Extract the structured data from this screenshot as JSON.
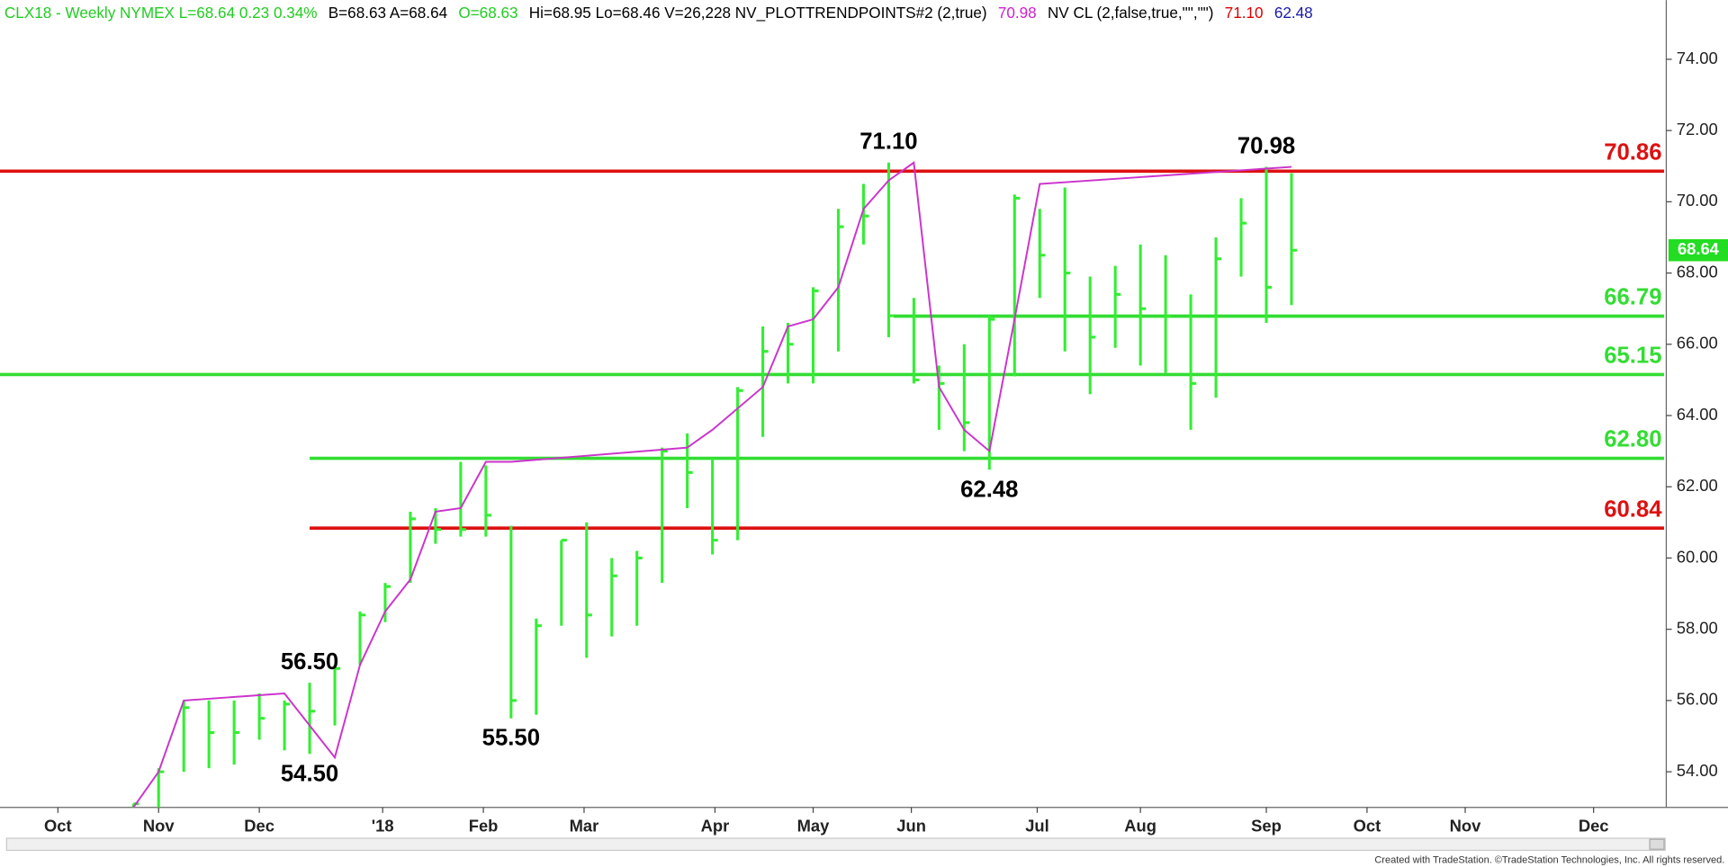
{
  "chart_data": {
    "type": "ohlc",
    "header": [
      {
        "text": "CLX18 - Weekly  NYMEX  L=68.64  0.23  0.34%",
        "color": "#22cc22"
      },
      {
        "text": "B=68.63  A=68.64",
        "color": "#000000"
      },
      {
        "text": "O=68.63",
        "color": "#22cc22"
      },
      {
        "text": "Hi=68.95  Lo=68.46  V=26,228  NV_PLOTTRENDPOINTS#2 (2,true)",
        "color": "#000000"
      },
      {
        "text": "70.98",
        "color": "#cc22cc"
      },
      {
        "text": "NV CL (2,false,true,\"\",\"\")",
        "color": "#000000"
      },
      {
        "text": "71.10",
        "color": "#dd0000"
      },
      {
        "text": "62.48",
        "color": "#1a1aaa"
      }
    ],
    "color": "#33ee33",
    "x": [
      0,
      1,
      2,
      3,
      4,
      5,
      6,
      7,
      8,
      9,
      10,
      11,
      12,
      13,
      14,
      15,
      16,
      17,
      18,
      19,
      20,
      21,
      22,
      23,
      24,
      25,
      26,
      27,
      28,
      29,
      30,
      31,
      32,
      33,
      34,
      35,
      36,
      37,
      38,
      39,
      40,
      41,
      42,
      43,
      44,
      45,
      46
    ],
    "high": [
      53.1,
      54.1,
      56.0,
      56.0,
      56.0,
      56.2,
      56.0,
      56.5,
      57.0,
      58.5,
      59.3,
      61.3,
      61.4,
      62.7,
      62.6,
      60.9,
      58.3,
      60.5,
      61.0,
      60.0,
      60.2,
      63.1,
      63.5,
      62.8,
      64.8,
      66.5,
      66.6,
      67.6,
      69.8,
      70.5,
      71.1,
      67.3,
      65.4,
      66.0,
      66.8,
      70.2,
      69.8,
      70.4,
      67.9,
      68.2,
      68.8,
      68.5,
      67.4,
      69.0,
      70.1,
      70.98,
      70.8
    ],
    "low": [
      53.0,
      53.0,
      54.0,
      54.1,
      54.2,
      54.9,
      54.6,
      54.5,
      55.3,
      57.0,
      58.2,
      59.3,
      60.4,
      60.6,
      60.6,
      55.5,
      55.6,
      58.1,
      57.2,
      57.8,
      58.1,
      59.3,
      61.4,
      60.1,
      60.5,
      63.4,
      64.9,
      64.9,
      65.8,
      68.8,
      66.2,
      64.9,
      63.6,
      63.0,
      62.48,
      65.1,
      67.3,
      65.8,
      64.6,
      65.9,
      65.4,
      65.2,
      63.6,
      64.5,
      67.9,
      66.6,
      67.1
    ],
    "close": [
      53.1,
      54.0,
      55.8,
      55.1,
      55.1,
      55.5,
      55.9,
      55.7,
      56.9,
      58.4,
      59.2,
      61.1,
      60.8,
      60.8,
      61.2,
      56.0,
      58.1,
      60.5,
      58.4,
      59.5,
      60.0,
      63.0,
      62.4,
      60.5,
      64.7,
      65.8,
      66.0,
      67.5,
      69.3,
      69.6,
      66.8,
      65.0,
      64.9,
      63.8,
      66.7,
      70.1,
      68.5,
      68.0,
      66.2,
      67.4,
      67.0,
      66.8,
      64.9,
      68.4,
      69.4,
      67.6,
      68.64
    ],
    "trend": {
      "color": "#cc33cc",
      "x": [
        0,
        1,
        2,
        6,
        8,
        9,
        10,
        11,
        12,
        13,
        14,
        15,
        22,
        23,
        25,
        26,
        27,
        28,
        29,
        30,
        31,
        32,
        33,
        34,
        35,
        36,
        46
      ],
      "values": [
        53.0,
        54.0,
        56.0,
        56.2,
        54.4,
        57.0,
        58.5,
        59.4,
        61.3,
        61.4,
        62.7,
        62.7,
        63.1,
        63.6,
        64.8,
        66.5,
        66.7,
        67.6,
        69.8,
        70.6,
        71.1,
        64.8,
        63.6,
        63.0,
        66.7,
        70.5,
        70.98
      ]
    },
    "levels": [
      {
        "value": 70.86,
        "color": "#dd1111",
        "x_start": -5.3
      },
      {
        "value": 66.79,
        "color": "#33dd33",
        "x_start": 30.2
      },
      {
        "value": 65.15,
        "color": "#33dd33",
        "x_start": -5.3
      },
      {
        "value": 62.8,
        "label": "62.80",
        "color": "#33dd33",
        "x_start": 7
      },
      {
        "value": 60.84,
        "color": "#dd1111",
        "x_start": 7
      }
    ],
    "pivots": [
      {
        "x": 30,
        "value": 71.1,
        "label": "71.10",
        "side": "above"
      },
      {
        "x": 45,
        "value": 70.98,
        "label": "70.98",
        "side": "above"
      },
      {
        "x": 34,
        "value": 62.48,
        "label": "62.48",
        "side": "below"
      },
      {
        "x": 7,
        "value": 56.5,
        "label": "56.50",
        "side": "above"
      },
      {
        "x": 7,
        "value": 54.5,
        "label": "54.50",
        "side": "below"
      },
      {
        "x": 15,
        "value": 55.5,
        "label": "55.50",
        "side": "below"
      }
    ],
    "last": 68.64,
    "xlim": [
      -5.3,
      60.8
    ],
    "xticks": [
      {
        "value": -3.0,
        "label": "Oct"
      },
      {
        "value": 1.0,
        "label": "Nov"
      },
      {
        "value": 5.0,
        "label": "Dec"
      },
      {
        "value": 9.9,
        "label": "'18"
      },
      {
        "value": 13.9,
        "label": "Feb"
      },
      {
        "value": 17.9,
        "label": "Mar"
      },
      {
        "value": 23.1,
        "label": "Apr"
      },
      {
        "value": 27.0,
        "label": "May"
      },
      {
        "value": 30.9,
        "label": "Jun"
      },
      {
        "value": 35.9,
        "label": "Jul"
      },
      {
        "value": 40.0,
        "label": "Aug"
      },
      {
        "value": 45.0,
        "label": "Sep"
      },
      {
        "value": 49.0,
        "label": "Oct"
      },
      {
        "value": 52.9,
        "label": "Nov"
      },
      {
        "value": 58.0,
        "label": "Dec"
      }
    ],
    "ylim": [
      53,
      75.66
    ],
    "yticks": [
      {
        "value": 54,
        "label": "54.00"
      },
      {
        "value": 56,
        "label": "56.00"
      },
      {
        "value": 58,
        "label": "58.00"
      },
      {
        "value": 60,
        "label": "60.00"
      },
      {
        "value": 62,
        "label": "62.00"
      },
      {
        "value": 64,
        "label": "64.00"
      },
      {
        "value": 66,
        "label": "66.00"
      },
      {
        "value": 68,
        "label": "68.00"
      },
      {
        "value": 70,
        "label": "70.00"
      },
      {
        "value": 72,
        "label": "72.00"
      },
      {
        "value": 74,
        "label": "74.00"
      }
    ],
    "footer": "Created with TradeStation. ©TradeStation Technologies, Inc. All rights reserved."
  }
}
